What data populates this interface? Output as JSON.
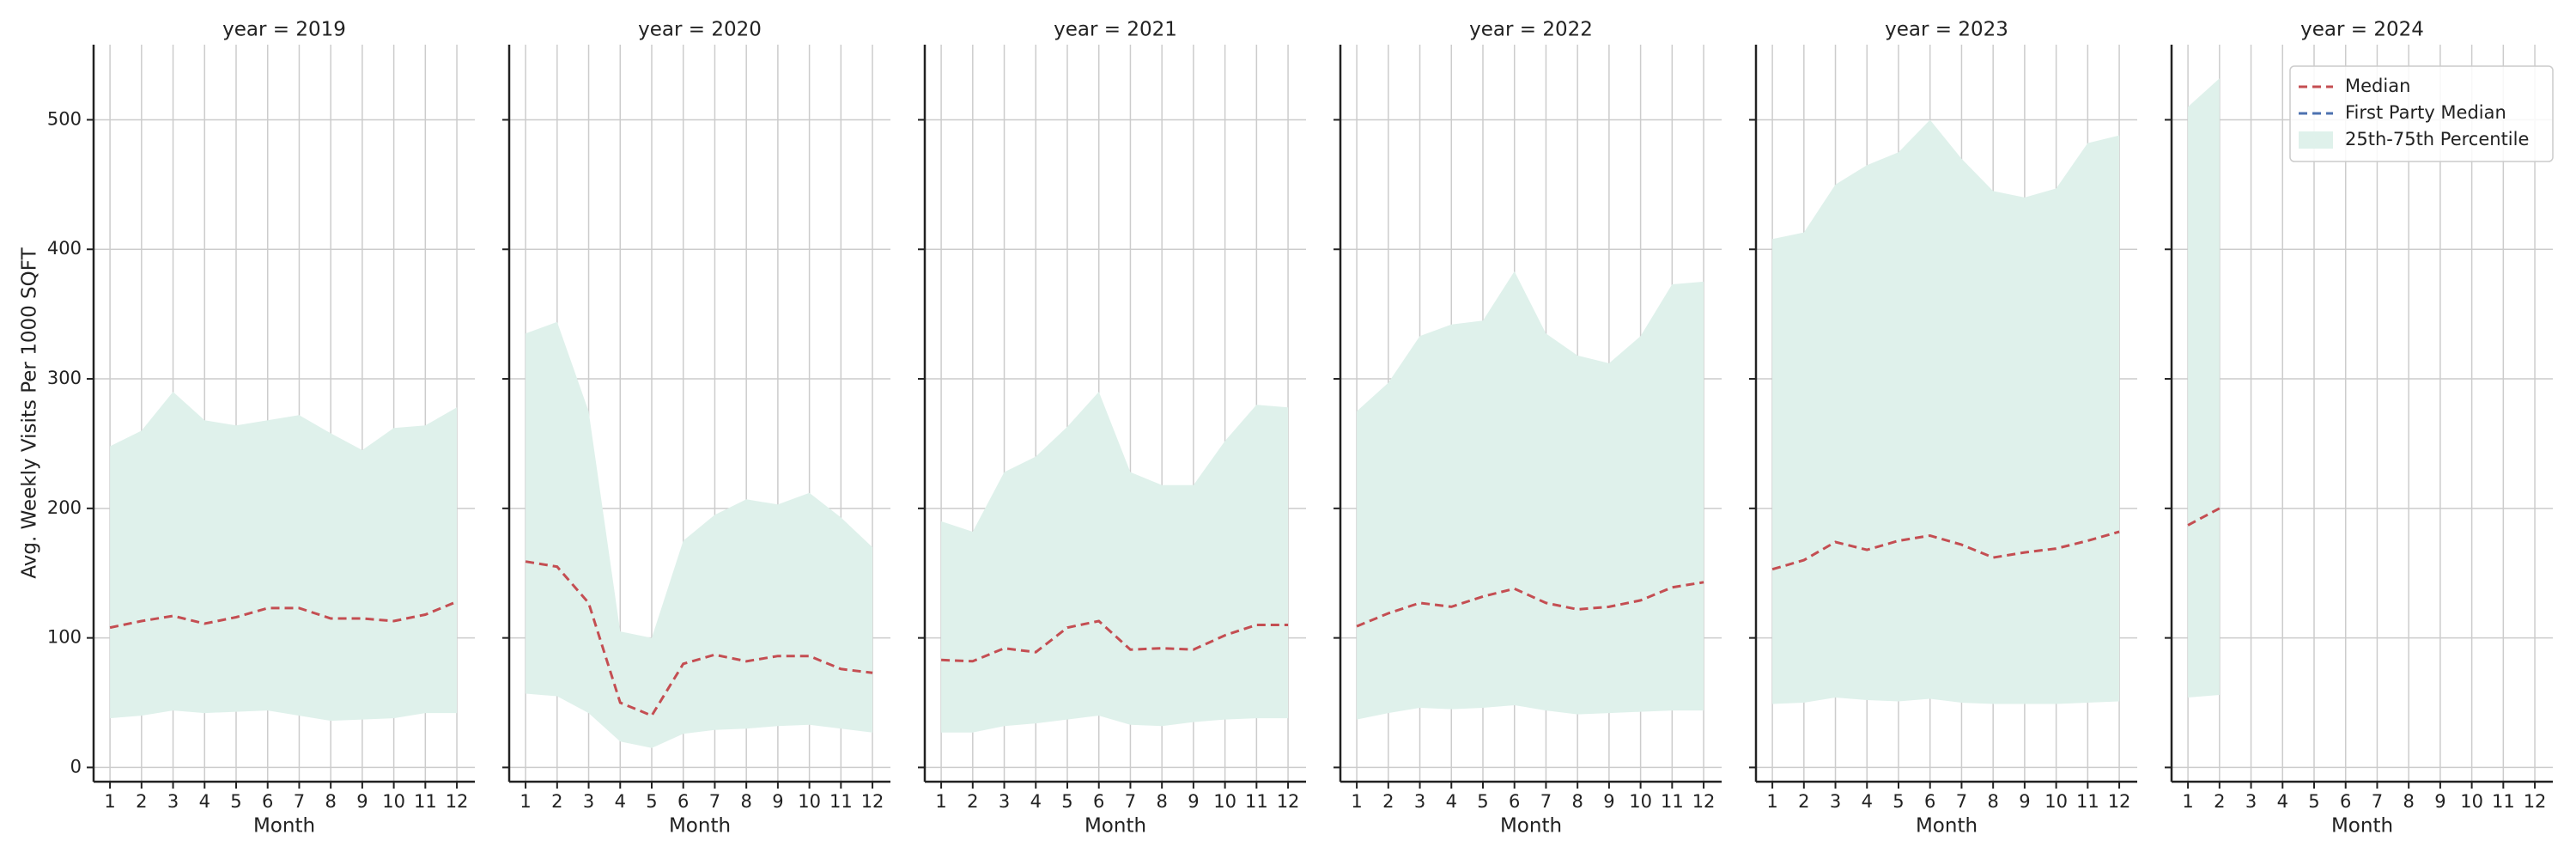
{
  "chart_data": [
    {
      "type": "line",
      "title": "year = 2019",
      "xlabel": "Month",
      "ylabel": "Avg. Weekly Visits Per 1000 SQFT",
      "x": [
        1,
        2,
        3,
        4,
        5,
        6,
        7,
        8,
        9,
        10,
        11,
        12
      ],
      "xlim": [
        0.48,
        12.57
      ],
      "xticks": [
        1,
        2,
        3,
        4,
        5,
        6,
        7,
        8,
        9,
        10,
        11,
        12
      ],
      "ylim": [
        -11,
        558
      ],
      "yticks": [
        0,
        100,
        200,
        300,
        400,
        500
      ],
      "grid": true,
      "series": [
        {
          "color": "#c44e52",
          "values": [
            108,
            113,
            117,
            111,
            116,
            123,
            123,
            115,
            115,
            113,
            118,
            128
          ]
        }
      ],
      "band": {
        "color": "#dff1eb",
        "lower": [
          38,
          40,
          44,
          42,
          43,
          44,
          40,
          36,
          37,
          38,
          42,
          42
        ],
        "upper": [
          248,
          260,
          290,
          268,
          264,
          268,
          272,
          258,
          245,
          262,
          264,
          278
        ]
      }
    },
    {
      "type": "line",
      "title": "year = 2020",
      "xlabel": "Month",
      "x": [
        1,
        2,
        3,
        4,
        5,
        6,
        7,
        8,
        9,
        10,
        11,
        12
      ],
      "xlim": [
        0.48,
        12.57
      ],
      "xticks": [
        1,
        2,
        3,
        4,
        5,
        6,
        7,
        8,
        9,
        10,
        11,
        12
      ],
      "ylim": [
        -11,
        558
      ],
      "yticks": [
        0,
        100,
        200,
        300,
        400,
        500
      ],
      "grid": true,
      "series": [
        {
          "color": "#c44e52",
          "values": [
            159,
            155,
            127,
            50,
            40,
            80,
            87,
            82,
            86,
            86,
            76,
            73
          ]
        }
      ],
      "band": {
        "color": "#dff1eb",
        "lower": [
          57,
          55,
          42,
          20,
          15,
          26,
          29,
          30,
          32,
          33,
          30,
          27
        ],
        "upper": [
          335,
          344,
          275,
          105,
          100,
          175,
          195,
          207,
          203,
          212,
          193,
          170
        ]
      }
    },
    {
      "type": "line",
      "title": "year = 2021",
      "xlabel": "Month",
      "x": [
        1,
        2,
        3,
        4,
        5,
        6,
        7,
        8,
        9,
        10,
        11,
        12
      ],
      "xlim": [
        0.48,
        12.57
      ],
      "xticks": [
        1,
        2,
        3,
        4,
        5,
        6,
        7,
        8,
        9,
        10,
        11,
        12
      ],
      "ylim": [
        -11,
        558
      ],
      "yticks": [
        0,
        100,
        200,
        300,
        400,
        500
      ],
      "grid": true,
      "series": [
        {
          "color": "#c44e52",
          "values": [
            83,
            82,
            92,
            89,
            108,
            113,
            91,
            92,
            91,
            102,
            110,
            110
          ]
        }
      ],
      "band": {
        "color": "#dff1eb",
        "lower": [
          27,
          27,
          32,
          34,
          37,
          40,
          33,
          32,
          35,
          37,
          38,
          38
        ],
        "upper": [
          190,
          182,
          228,
          240,
          263,
          290,
          228,
          218,
          218,
          252,
          280,
          278
        ]
      }
    },
    {
      "type": "line",
      "title": "year = 2022",
      "xlabel": "Month",
      "x": [
        1,
        2,
        3,
        4,
        5,
        6,
        7,
        8,
        9,
        10,
        11,
        12
      ],
      "xlim": [
        0.48,
        12.57
      ],
      "xticks": [
        1,
        2,
        3,
        4,
        5,
        6,
        7,
        8,
        9,
        10,
        11,
        12
      ],
      "ylim": [
        -11,
        558
      ],
      "yticks": [
        0,
        100,
        200,
        300,
        400,
        500
      ],
      "grid": true,
      "series": [
        {
          "color": "#c44e52",
          "values": [
            109,
            119,
            127,
            124,
            132,
            138,
            127,
            122,
            124,
            129,
            139,
            143
          ]
        }
      ],
      "band": {
        "color": "#dff1eb",
        "lower": [
          37,
          42,
          46,
          45,
          46,
          48,
          44,
          41,
          42,
          43,
          44,
          44
        ],
        "upper": [
          275,
          297,
          333,
          342,
          345,
          383,
          335,
          318,
          312,
          333,
          373,
          375
        ]
      }
    },
    {
      "type": "line",
      "title": "year = 2023",
      "xlabel": "Month",
      "x": [
        1,
        2,
        3,
        4,
        5,
        6,
        7,
        8,
        9,
        10,
        11,
        12
      ],
      "xlim": [
        0.48,
        12.57
      ],
      "xticks": [
        1,
        2,
        3,
        4,
        5,
        6,
        7,
        8,
        9,
        10,
        11,
        12
      ],
      "ylim": [
        -11,
        558
      ],
      "yticks": [
        0,
        100,
        200,
        300,
        400,
        500
      ],
      "grid": true,
      "series": [
        {
          "color": "#c44e52",
          "values": [
            153,
            160,
            174,
            168,
            175,
            179,
            172,
            162,
            166,
            169,
            175,
            182
          ]
        }
      ],
      "band": {
        "color": "#dff1eb",
        "lower": [
          49,
          50,
          54,
          52,
          51,
          53,
          50,
          49,
          49,
          49,
          50,
          51
        ],
        "upper": [
          408,
          413,
          450,
          465,
          475,
          500,
          470,
          445,
          440,
          447,
          482,
          488
        ]
      }
    },
    {
      "type": "line",
      "title": "year = 2024",
      "xlabel": "Month",
      "x": [
        1,
        2,
        3,
        4,
        5,
        6,
        7,
        8,
        9,
        10,
        11,
        12
      ],
      "xlim": [
        0.48,
        12.57
      ],
      "xticks": [
        1,
        2,
        3,
        4,
        5,
        6,
        7,
        8,
        9,
        10,
        11,
        12
      ],
      "ylim": [
        -11,
        558
      ],
      "yticks": [
        0,
        100,
        200,
        300,
        400,
        500
      ],
      "grid": true,
      "legend": "upper right",
      "series": [
        {
          "name": "Median",
          "color": "#c44e52",
          "values": [
            187,
            200,
            null,
            null,
            null,
            null,
            null,
            null,
            null,
            null,
            null,
            null
          ]
        },
        {
          "name": "First Party Median",
          "color": "#4c72b0",
          "values": [
            null,
            null,
            null,
            null,
            null,
            null,
            null,
            null,
            null,
            null,
            null,
            null
          ]
        }
      ],
      "band": {
        "name": "25th-75th Percentile",
        "color": "#dff1eb",
        "lower": [
          54,
          56,
          null,
          null,
          null,
          null,
          null,
          null,
          null,
          null,
          null,
          null
        ],
        "upper": [
          510,
          532,
          null,
          null,
          null,
          null,
          null,
          null,
          null,
          null,
          null,
          null
        ]
      }
    }
  ]
}
